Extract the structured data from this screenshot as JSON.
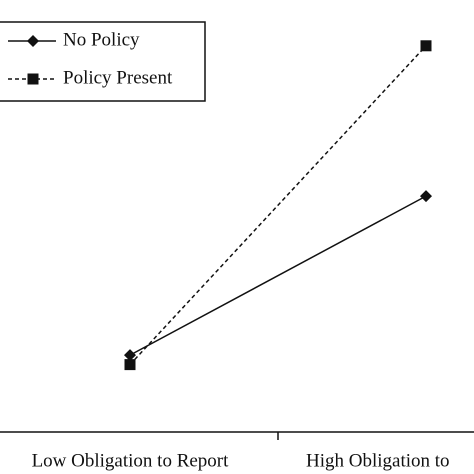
{
  "chart_data": {
    "type": "line",
    "categories": [
      "Low Obligation to Report",
      "High Obligation to"
    ],
    "series": [
      {
        "name": "No Policy",
        "color": "#111111",
        "linestyle": "solid",
        "marker": "diamond",
        "values": [
          0.89,
          2.73
        ]
      },
      {
        "name": "Policy Present",
        "color": "#111111",
        "linestyle": "dashed",
        "marker": "square",
        "values": [
          0.78,
          4.47
        ]
      }
    ],
    "ylim": [
      0,
      5
    ],
    "legend": "upper left",
    "grid": false
  }
}
